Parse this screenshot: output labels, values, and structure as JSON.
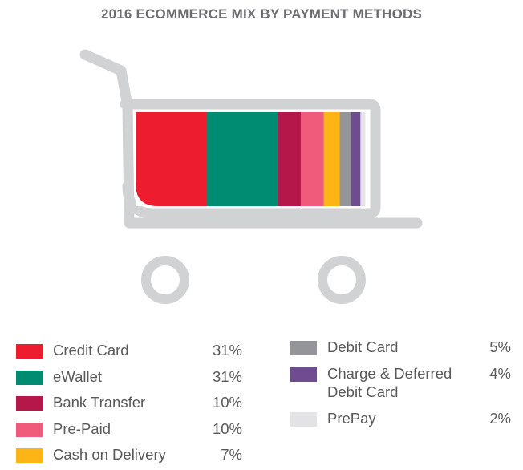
{
  "chart_data": {
    "type": "bar",
    "title": "2016 ECOMMERCE MIX BY PAYMENT METHODS",
    "categories": [
      "Credit Card",
      "eWallet",
      "Bank Transfer",
      "Pre-Paid",
      "Cash on Delivery",
      "Debit Card",
      "Charge & Deferred Debit Card",
      "PrePay"
    ],
    "values": [
      31,
      31,
      10,
      10,
      7,
      5,
      4,
      2
    ],
    "value_labels": [
      "31%",
      "31%",
      "10%",
      "10%",
      "7%",
      "5%",
      "4%",
      "2%"
    ],
    "colors": [
      "#ed1c2e",
      "#008c72",
      "#b5174b",
      "#f05b7b",
      "#fdb515",
      "#939598",
      "#6e4c8f",
      "#e3e3e5"
    ],
    "stacked": true,
    "legend_position": "bottom",
    "grid": false,
    "decoration": "shopping-cart-icon",
    "cart_color": "#d1d2d4"
  },
  "legend_rows": {
    "Charge & Deferred Debit Card": [
      "Charge & Deferred",
      "Debit Card"
    ]
  }
}
